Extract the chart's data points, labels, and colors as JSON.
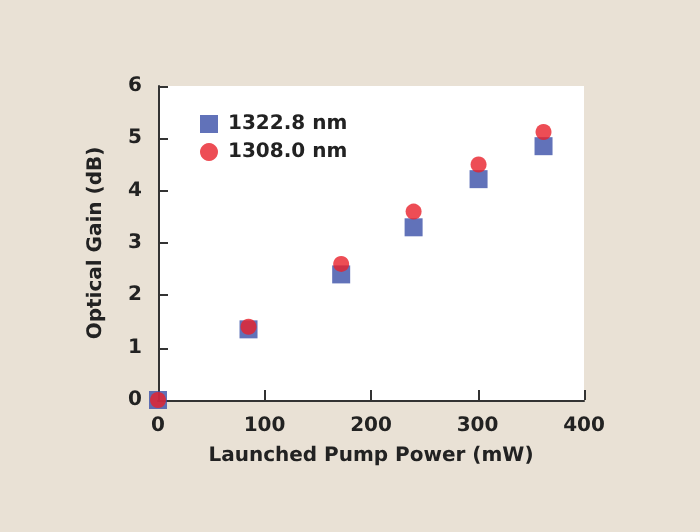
{
  "chart_data": {
    "type": "scatter",
    "xlabel": "Launched Pump Power (mW)",
    "ylabel": "Optical Gain (dB)",
    "x": [
      0,
      85,
      172,
      240,
      301,
      362
    ],
    "series": [
      {
        "name": "1322.8 nm",
        "color": "#3a4fa8",
        "marker": "square",
        "values": [
          0,
          1.35,
          2.4,
          3.3,
          4.22,
          4.85
        ]
      },
      {
        "name": "1308.0 nm",
        "color": "#e8202a",
        "marker": "circle",
        "values": [
          0,
          1.4,
          2.6,
          3.6,
          4.5,
          5.12
        ]
      }
    ],
    "xlim": [
      0,
      400
    ],
    "xticks": [
      0,
      100,
      200,
      300,
      400
    ],
    "ylim": [
      0,
      6
    ],
    "yticks": [
      0,
      1,
      2,
      3,
      4,
      5,
      6
    ],
    "grid": false,
    "legend": "top left"
  }
}
